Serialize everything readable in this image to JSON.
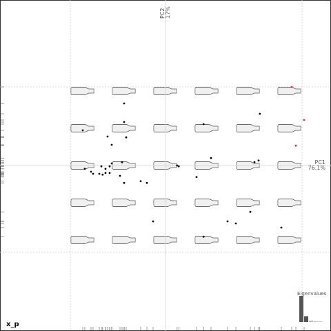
{
  "chart_data": {
    "type": "scatter",
    "title": "",
    "corner_label": "x_p",
    "axes": {
      "pc1": {
        "label": "PC1",
        "variance": "76.1%",
        "xlim": [
          -4.0,
          4.0
        ]
      },
      "pc2": {
        "label": "PC2",
        "variance": "17%",
        "ylim": [
          -4.0,
          4.0
        ]
      }
    },
    "grid": false,
    "outline_shape": "bottle",
    "morphospace_pc1": [
      -2.0,
      -1.0,
      0.0,
      1.0,
      2.0,
      3.0
    ],
    "morphospace_pc2": [
      1.8,
      0.9,
      0.0,
      -0.9,
      -1.8
    ],
    "points": [
      {
        "x": -1.0,
        "y": 1.5,
        "c": "black"
      },
      {
        "x": -1.0,
        "y": 1.05,
        "c": "black"
      },
      {
        "x": -1.3,
        "y": 0.5,
        "c": "black"
      },
      {
        "x": -1.4,
        "y": 0.7,
        "c": "black"
      },
      {
        "x": -0.95,
        "y": 0.68,
        "c": "black"
      },
      {
        "x": -2.0,
        "y": 0.85,
        "c": "black"
      },
      {
        "x": -1.3,
        "y": 0.05,
        "c": "black"
      },
      {
        "x": -1.05,
        "y": 0.08,
        "c": "black"
      },
      {
        "x": -1.45,
        "y": -0.08,
        "c": "black"
      },
      {
        "x": -1.35,
        "y": -0.02,
        "c": "black"
      },
      {
        "x": -1.55,
        "y": -0.02,
        "c": "black"
      },
      {
        "x": -1.8,
        "y": -0.15,
        "c": "black"
      },
      {
        "x": -1.95,
        "y": -0.08,
        "c": "black"
      },
      {
        "x": -1.75,
        "y": -0.2,
        "c": "black"
      },
      {
        "x": -1.6,
        "y": -0.2,
        "c": "black"
      },
      {
        "x": -1.52,
        "y": -0.22,
        "c": "black"
      },
      {
        "x": -1.45,
        "y": -0.18,
        "c": "black"
      },
      {
        "x": -1.35,
        "y": -0.18,
        "c": "black"
      },
      {
        "x": -1.1,
        "y": -0.25,
        "c": "black"
      },
      {
        "x": -1.0,
        "y": -0.42,
        "c": "black"
      },
      {
        "x": -0.6,
        "y": -0.38,
        "c": "black"
      },
      {
        "x": -0.45,
        "y": -0.42,
        "c": "black"
      },
      {
        "x": -0.3,
        "y": -1.35,
        "c": "black"
      },
      {
        "x": 0.28,
        "y": 0.0,
        "c": "black"
      },
      {
        "x": 0.32,
        "y": -0.02,
        "c": "black"
      },
      {
        "x": 0.75,
        "y": -0.28,
        "c": "black"
      },
      {
        "x": 0.92,
        "y": 1.0,
        "c": "black"
      },
      {
        "x": 1.1,
        "y": 0.18,
        "c": "black"
      },
      {
        "x": 0.92,
        "y": -1.72,
        "c": "black"
      },
      {
        "x": 1.5,
        "y": -1.35,
        "c": "black"
      },
      {
        "x": 1.7,
        "y": -1.4,
        "c": "black"
      },
      {
        "x": 2.05,
        "y": -1.12,
        "c": "black"
      },
      {
        "x": 2.15,
        "y": 0.08,
        "c": "black"
      },
      {
        "x": 2.25,
        "y": 0.12,
        "c": "black"
      },
      {
        "x": 2.28,
        "y": 1.25,
        "c": "black"
      },
      {
        "x": 2.8,
        "y": -1.5,
        "c": "black"
      },
      {
        "x": 3.15,
        "y": 0.48,
        "c": "#d03030"
      },
      {
        "x": 3.35,
        "y": 1.1,
        "c": "#d03030"
      },
      {
        "x": 3.05,
        "y": 1.9,
        "c": "#d03030"
      }
    ],
    "eigenvalues": {
      "title": "Eigenvalues",
      "values": [
        0.761,
        0.17,
        0.04,
        0.02,
        0.01
      ]
    },
    "colors": {
      "points": "#000000",
      "highlight": "#d03030",
      "axis": "#cccccc",
      "shape_fill": "#f0f0f0",
      "shape_stroke": "#555555",
      "eigen_bar": "#555555"
    }
  }
}
